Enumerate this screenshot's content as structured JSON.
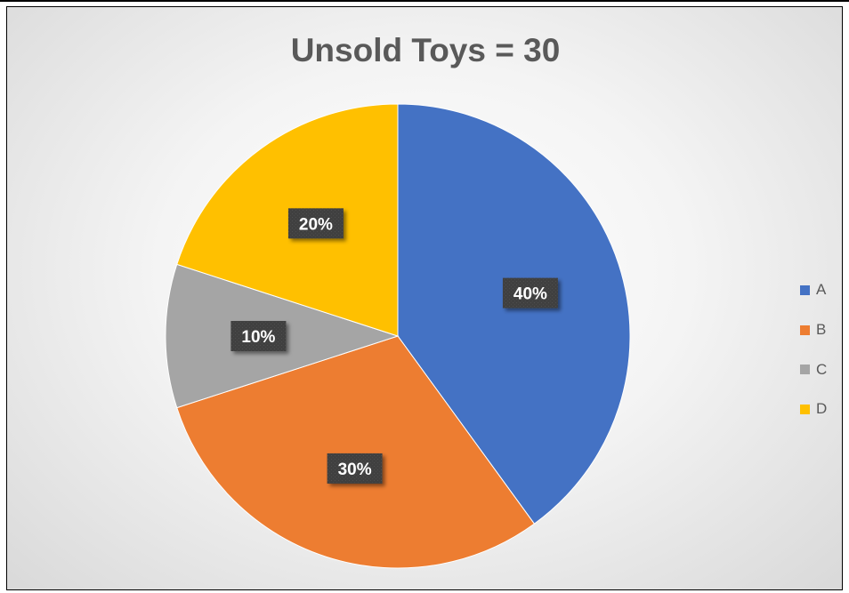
{
  "chart_data": {
    "type": "pie",
    "title": "Unsold Toys = 30",
    "categories": [
      "A",
      "B",
      "C",
      "D"
    ],
    "values": [
      40,
      30,
      10,
      20
    ],
    "data_labels": [
      "40%",
      "30%",
      "10%",
      "20%"
    ],
    "colors": [
      "#4472C4",
      "#ED7D31",
      "#A5A5A5",
      "#FFC000"
    ],
    "start_angle_deg": 0,
    "direction": "clockwise",
    "legend_position": "right"
  }
}
